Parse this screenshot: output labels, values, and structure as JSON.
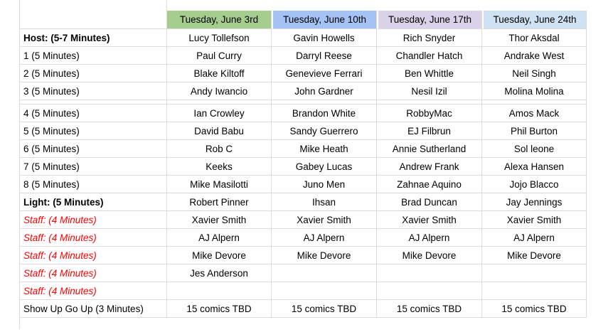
{
  "sheet": {
    "corner_label": "",
    "date_columns": [
      {
        "label": "Tuesday, June 3rd",
        "color": "#a5cd8d"
      },
      {
        "label": "Tuesday, June 10th",
        "color": "#a4c2f4"
      },
      {
        "label": "Tuesday, June 17th",
        "color": "#d9d2e9"
      },
      {
        "label": "Tuesday, June 24th",
        "color": "#cfe2f3"
      }
    ],
    "rows": [
      {
        "label": "Host: (5-7 Minutes)",
        "style": "bold",
        "cells": [
          "Lucy Tollefson",
          "Gavin Howells",
          "Rich Snyder",
          "Thor Aksdal"
        ]
      },
      {
        "label": "1 (5 Minutes)",
        "style": "normal",
        "cells": [
          "Paul Curry",
          "Darryl Reese",
          "Chandler Hatch",
          "Andrake West"
        ]
      },
      {
        "label": "2 (5 Minutes)",
        "style": "normal",
        "cells": [
          "Blake Kiltoff",
          "Genevieve Ferrari",
          "Ben Whittle",
          "Neil Singh"
        ]
      },
      {
        "label": "3 (5 Minutes)",
        "style": "normal",
        "cells": [
          "Andy Iwancio",
          "John Gardner",
          "Nesil Izil",
          "Molina Molina"
        ]
      },
      {
        "label": "",
        "style": "spacer",
        "cells": [
          "",
          "",
          "",
          ""
        ]
      },
      {
        "label": "4 (5 Minutes)",
        "style": "normal",
        "cells": [
          "Ian Crowley",
          "Brandon White",
          "RobbyMac",
          "Amos Mack"
        ]
      },
      {
        "label": "5 (5 Minutes)",
        "style": "normal",
        "cells": [
          "David Babu",
          "Sandy Guerrero",
          "EJ Filbrun",
          "Phil Burton"
        ]
      },
      {
        "label": "6 (5 Minutes)",
        "style": "normal",
        "cells": [
          "Rob C",
          "Mike Heath",
          "Annie Sutherland",
          "Sol leone"
        ]
      },
      {
        "label": "7 (5 Minutes)",
        "style": "normal",
        "cells": [
          "Keeks",
          "Gabey Lucas",
          "Andrew Frank",
          "Alexa Hansen"
        ]
      },
      {
        "label": "8 (5 Minutes)",
        "style": "normal",
        "cells": [
          "Mike Masilotti",
          "Juno Men",
          "Zahnae Aquino",
          "Jojo Blacco"
        ]
      },
      {
        "label": "Light: (5 Minutes)",
        "style": "bold",
        "cells": [
          "Robert Pinner",
          "Ihsan",
          "Brad Duncan",
          "Jay Jennings"
        ]
      },
      {
        "label": "Staff: (4 Minutes)",
        "style": "staff",
        "cells": [
          "Xavier Smith",
          "Xavier Smith",
          "Xavier Smith",
          "Xavier Smith"
        ]
      },
      {
        "label": "Staff: (4 Minutes)",
        "style": "staff",
        "cells": [
          "AJ Alpern",
          "AJ Alpern",
          "AJ Alpern",
          "AJ Alpern"
        ]
      },
      {
        "label": "Staff: (4 Minutes)",
        "style": "staff",
        "cells": [
          "Mike Devore",
          "Mike Devore",
          "Mike Devore",
          "Mike Devore"
        ]
      },
      {
        "label": "Staff: (4 Minutes)",
        "style": "staff",
        "cells": [
          "Jes Anderson",
          "",
          "",
          ""
        ]
      },
      {
        "label": "Staff: (4 Minutes)",
        "style": "staff",
        "cells": [
          "",
          "",
          "",
          ""
        ]
      },
      {
        "label": "Show Up Go Up (3 Minutes)",
        "style": "normal",
        "cells": [
          "15 comics TBD",
          "15 comics TBD",
          "15 comics TBD",
          "15 comics TBD"
        ]
      }
    ],
    "colors": {
      "staff_text": "#ff0000",
      "gridline": "#dcdcdc",
      "header_green": "#a5cd8d",
      "header_blue": "#a4c2f4",
      "header_purple": "#d9d2e9",
      "header_lightblue": "#cfe2f3"
    }
  }
}
